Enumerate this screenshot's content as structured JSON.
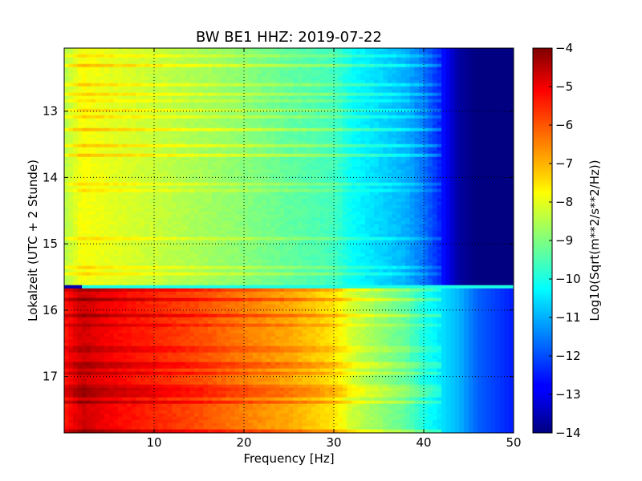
{
  "chart_data": {
    "type": "heatmap",
    "title": "BW BE1 HHZ: 2019-07-22",
    "xlabel": "Frequency [Hz]",
    "ylabel": "Lokalzeit (UTC + 2 Stunde)",
    "xlim": [
      0,
      50
    ],
    "ylim": [
      17.85,
      12.05
    ],
    "y_axis_inverted": true,
    "xticks": [
      10,
      20,
      30,
      40,
      50
    ],
    "xtick_labels": [
      "10",
      "20",
      "30",
      "40",
      "50"
    ],
    "yticks": [
      13,
      14,
      15,
      16,
      17
    ],
    "ytick_labels": [
      "13",
      "14",
      "15",
      "16",
      "17"
    ],
    "grid": true,
    "colormap": "jet",
    "colorbar": {
      "label": "Log10(Sqrt(m**2/s**2/Hz))",
      "range": [
        -14,
        -4
      ],
      "ticks": [
        -4,
        -5,
        -6,
        -7,
        -8,
        -9,
        -10,
        -11,
        -12,
        -13,
        -14
      ],
      "tick_labels": [
        "−4",
        "−5",
        "−6",
        "−7",
        "−8",
        "−9",
        "−10",
        "−11",
        "−12",
        "−13",
        "−14"
      ]
    },
    "transition_hour": 15.67,
    "frequency_profiles": [
      {
        "segment": "before transition",
        "hours": [
          12.05,
          15.67
        ],
        "frequency": [
          0,
          2,
          5,
          10,
          15,
          20,
          25,
          30,
          32,
          35,
          38,
          40,
          42,
          44,
          46,
          50
        ],
        "log_psd": [
          -8.5,
          -7.8,
          -8.0,
          -8.3,
          -8.6,
          -8.9,
          -9.3,
          -9.6,
          -10.2,
          -10.6,
          -11.0,
          -11.6,
          -12.5,
          -13.7,
          -14,
          -14
        ]
      },
      {
        "segment": "after transition",
        "hours": [
          15.67,
          17.85
        ],
        "frequency": [
          0,
          2,
          5,
          10,
          15,
          20,
          25,
          30,
          32,
          35,
          38,
          40,
          42,
          44,
          46,
          50
        ],
        "log_psd": [
          -5.5,
          -4.8,
          -5.2,
          -5.6,
          -6.0,
          -6.5,
          -6.9,
          -7.5,
          -8.2,
          -8.8,
          -9.3,
          -10.0,
          -10.5,
          -11.0,
          -11.8,
          -12.5
        ]
      }
    ]
  }
}
